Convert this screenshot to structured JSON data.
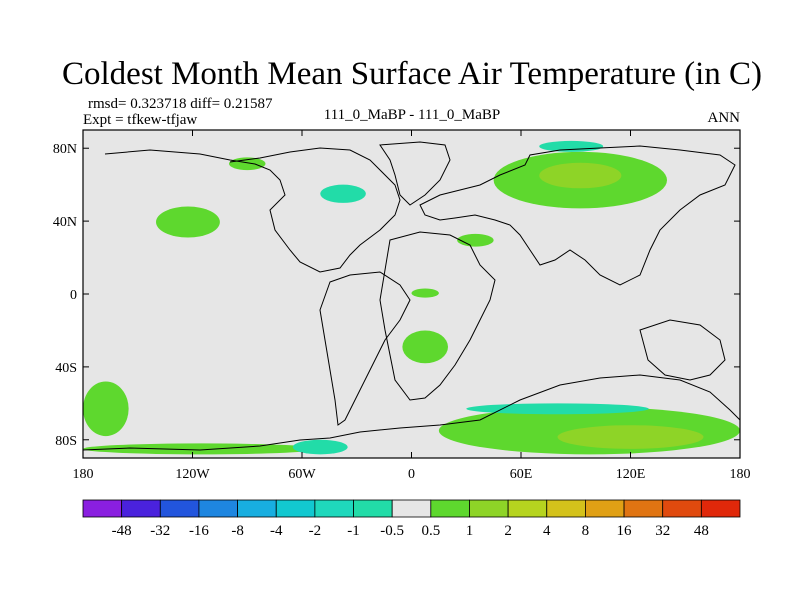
{
  "chart_data": {
    "type": "heatmap",
    "title": "Coldest Month Mean Surface Air Temperature (in C)",
    "stats_label": "rmsd= 0.323718 diff= 0.21587",
    "expt_label": "Expt = tfkew-tfjaw",
    "center_label": "111_0_MaBP - 111_0_MaBP",
    "season_label": "ANN",
    "xlim": [
      -180,
      180
    ],
    "ylim": [
      -90,
      90
    ],
    "x_ticks": [
      {
        "value": -180,
        "label": "180"
      },
      {
        "value": -120,
        "label": "120W"
      },
      {
        "value": -60,
        "label": "60W"
      },
      {
        "value": 0,
        "label": "0"
      },
      {
        "value": 60,
        "label": "60E"
      },
      {
        "value": 120,
        "label": "120E"
      },
      {
        "value": 180,
        "label": "180"
      }
    ],
    "y_ticks": [
      {
        "value": 80,
        "label": "80N"
      },
      {
        "value": 40,
        "label": "40N"
      },
      {
        "value": 0,
        "label": "0"
      },
      {
        "value": -40,
        "label": "40S"
      },
      {
        "value": -80,
        "label": "80S"
      }
    ],
    "colorbar": {
      "levels": [
        "-48",
        "-32",
        "-16",
        "-8",
        "-4",
        "-2",
        "-1",
        "-0.5",
        "0.5",
        "1",
        "2",
        "4",
        "8",
        "16",
        "32",
        "48"
      ],
      "colors": [
        "#8a1fe0",
        "#4a22dd",
        "#2255dd",
        "#1e86e0",
        "#18aee0",
        "#12c8d0",
        "#1fd8bc",
        "#22dca8",
        "#e6e6e6",
        "#5ed82e",
        "#8ed427",
        "#b6d41f",
        "#d4c21b",
        "#e0a015",
        "#e07412",
        "#e04a0e",
        "#e0280a"
      ],
      "note_background": "#e6e6e6"
    },
    "anomaly_regions": [
      {
        "bin": "0.5 to 1",
        "color": "#5ed82e",
        "lon": [
          -180,
          -155
        ],
        "lat": [
          -78,
          -48
        ]
      },
      {
        "bin": "0.5 to 1",
        "color": "#5ed82e",
        "lon": [
          -180,
          -50
        ],
        "lat": [
          -88,
          -82
        ]
      },
      {
        "bin": "0.5 to 1",
        "color": "#5ed82e",
        "lon": [
          -140,
          -105
        ],
        "lat": [
          31,
          48
        ]
      },
      {
        "bin": "0.5 to 1",
        "color": "#5ed82e",
        "lon": [
          -100,
          -80
        ],
        "lat": [
          68,
          75
        ]
      },
      {
        "bin": "0.5 to 1",
        "color": "#5ed82e",
        "lon": [
          -5,
          20
        ],
        "lat": [
          -38,
          -20
        ]
      },
      {
        "bin": "0.5 to 1",
        "color": "#5ed82e",
        "lon": [
          25,
          45
        ],
        "lat": [
          26,
          33
        ]
      },
      {
        "bin": "0.5 to 1",
        "color": "#5ed82e",
        "lon": [
          0,
          15
        ],
        "lat": [
          -2,
          3
        ]
      },
      {
        "bin": "0.5 to 1",
        "color": "#5ed82e",
        "lon": [
          45,
          140
        ],
        "lat": [
          47,
          78
        ]
      },
      {
        "bin": "0.5 to 1",
        "color": "#5ed82e",
        "lon": [
          15,
          180
        ],
        "lat": [
          -88,
          -62
        ]
      },
      {
        "bin": "1 to 2",
        "color": "#8ed427",
        "lon": [
          70,
          115
        ],
        "lat": [
          58,
          72
        ]
      },
      {
        "bin": "1 to 2",
        "color": "#8ed427",
        "lon": [
          80,
          160
        ],
        "lat": [
          -85,
          -72
        ]
      },
      {
        "bin": "-1 to -0.5",
        "color": "#22dca8",
        "lon": [
          -50,
          -25
        ],
        "lat": [
          50,
          60
        ]
      },
      {
        "bin": "-1 to -0.5",
        "color": "#22dca8",
        "lon": [
          -65,
          -35
        ],
        "lat": [
          -88,
          -80
        ]
      },
      {
        "bin": "-1 to -0.5",
        "color": "#22dca8",
        "lon": [
          30,
          130
        ],
        "lat": [
          -66,
          -60
        ]
      },
      {
        "bin": "-1 to -0.5",
        "color": "#22dca8",
        "lon": [
          70,
          105
        ],
        "lat": [
          78,
          84
        ]
      }
    ]
  }
}
